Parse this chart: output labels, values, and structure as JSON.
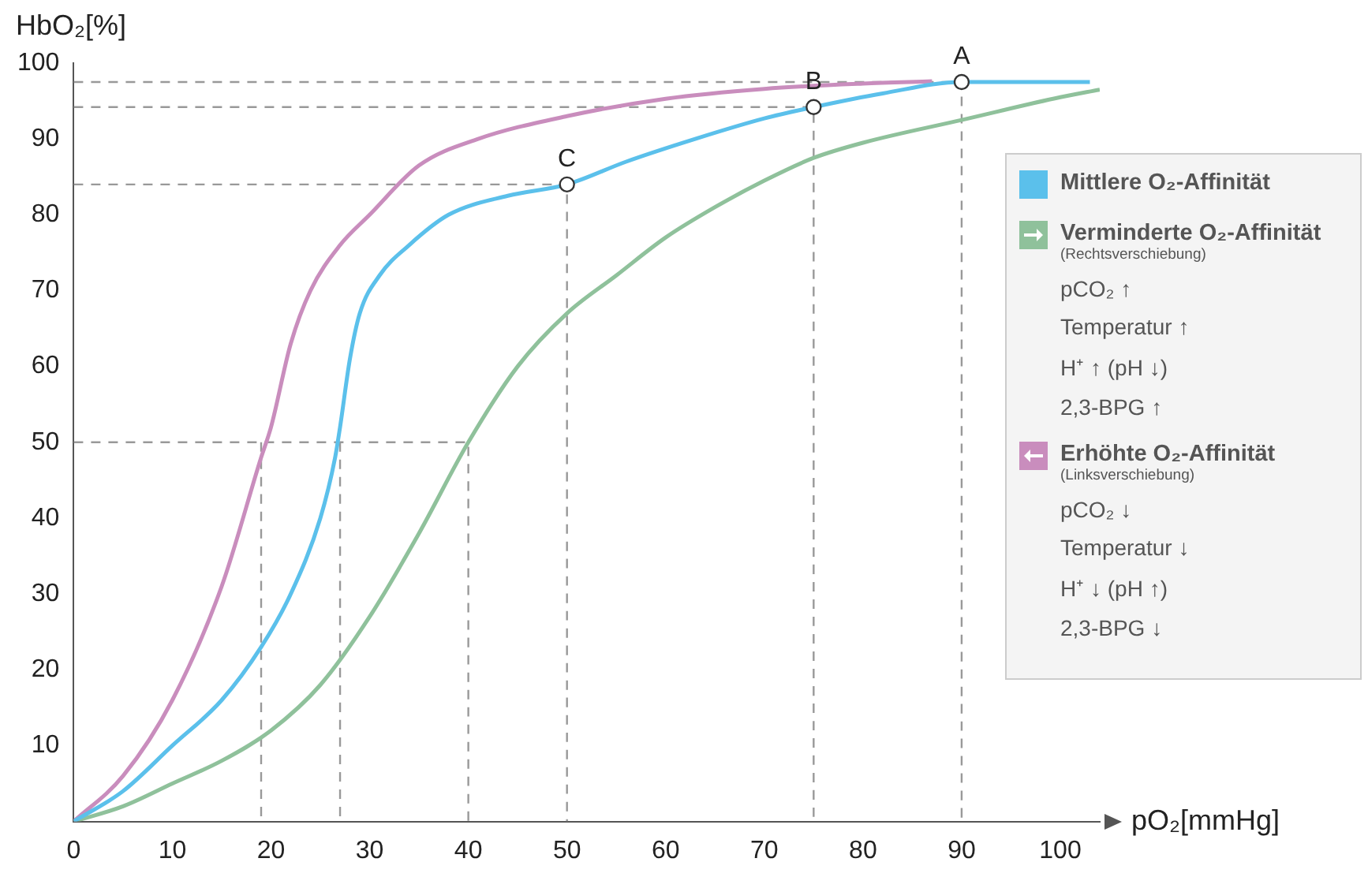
{
  "chart_data": {
    "type": "line",
    "xlabel": "pO₂[mmHg]",
    "ylabel": "HbO₂[%]",
    "xlim": [
      0,
      104
    ],
    "xticks": [
      0,
      10,
      20,
      30,
      40,
      50,
      60,
      70,
      80,
      90,
      100
    ],
    "ylim": [
      0,
      100
    ],
    "yticks": [
      10,
      20,
      30,
      40,
      50,
      60,
      70,
      80,
      90,
      100
    ],
    "grid": false,
    "legend": "right",
    "marker": "none",
    "line_style": "solid",
    "series": [
      {
        "name": "Mittlere O₂-Affinität",
        "color": "#5bc0eb",
        "x": [
          0,
          5,
          10,
          15,
          19,
          22,
          25,
          26.5,
          27,
          28,
          29,
          31,
          34,
          38,
          44,
          50,
          56,
          63,
          70,
          75,
          82,
          90,
          103
        ],
        "values": [
          0,
          4,
          10,
          16,
          23,
          30,
          40,
          48,
          52,
          61,
          67,
          72,
          76,
          80,
          82.5,
          84,
          87,
          90,
          92.7,
          94.2,
          96,
          97.5,
          97.5
        ]
      },
      {
        "name": "Verminderte O₂-Affinität",
        "color": "#8fc19b",
        "x": [
          0,
          5,
          10,
          15,
          20,
          25,
          30,
          35,
          40,
          45,
          50,
          55,
          60,
          65,
          70,
          75,
          80,
          90,
          100,
          104
        ],
        "values": [
          0,
          2,
          5,
          8,
          12,
          18,
          27,
          38,
          50,
          60,
          67,
          72,
          77,
          81,
          84.5,
          87.5,
          89.5,
          92.5,
          95.5,
          96.5
        ]
      },
      {
        "name": "Erhöhte O₂-Affinität",
        "color": "#c98dbd",
        "x": [
          0,
          5,
          10,
          15,
          19,
          20,
          22,
          24,
          27,
          30,
          35,
          41,
          50,
          60,
          70,
          80,
          87
        ],
        "values": [
          0,
          6,
          16,
          31,
          48,
          52,
          63,
          70,
          76,
          80,
          86.5,
          90,
          93,
          95.3,
          96.6,
          97.3,
          97.6
        ]
      },
      {
        "color": "#999999",
        "line_style": "dashed",
        "x": [
          0,
          90,
          90,
          null,
          0,
          75,
          75,
          null,
          0,
          50,
          50,
          null,
          0,
          40,
          40,
          null,
          19,
          19,
          null,
          27,
          27
        ],
        "values": [
          97.5,
          97.5,
          0,
          null,
          94.2,
          94.2,
          0,
          null,
          84,
          84,
          0,
          null,
          50,
          50,
          0,
          null,
          50,
          0,
          null,
          50,
          0
        ]
      },
      {
        "type": "scatter",
        "color": "#333333",
        "marker": "circle",
        "x": [
          90,
          75,
          50
        ],
        "values": [
          97.5,
          94.2,
          84
        ]
      }
    ],
    "annotations": [
      "(Rechtsverschiebung)",
      "pCO₂ ↑",
      "Temperatur ↑",
      "H⁺ ↑  (pH ↓)",
      "2,3-BPG ↑",
      "(Linksverschiebung)",
      "pCO₂ ↓",
      "Temperatur ↓",
      "H⁺ ↓  (pH ↑)",
      "2,3-BPG ↓",
      {
        "text": "A",
        "x": 90,
        "y": 97.5
      },
      {
        "text": "B",
        "x": 75,
        "y": 94.2
      },
      {
        "text": "C",
        "x": 50,
        "y": 84
      }
    ]
  }
}
